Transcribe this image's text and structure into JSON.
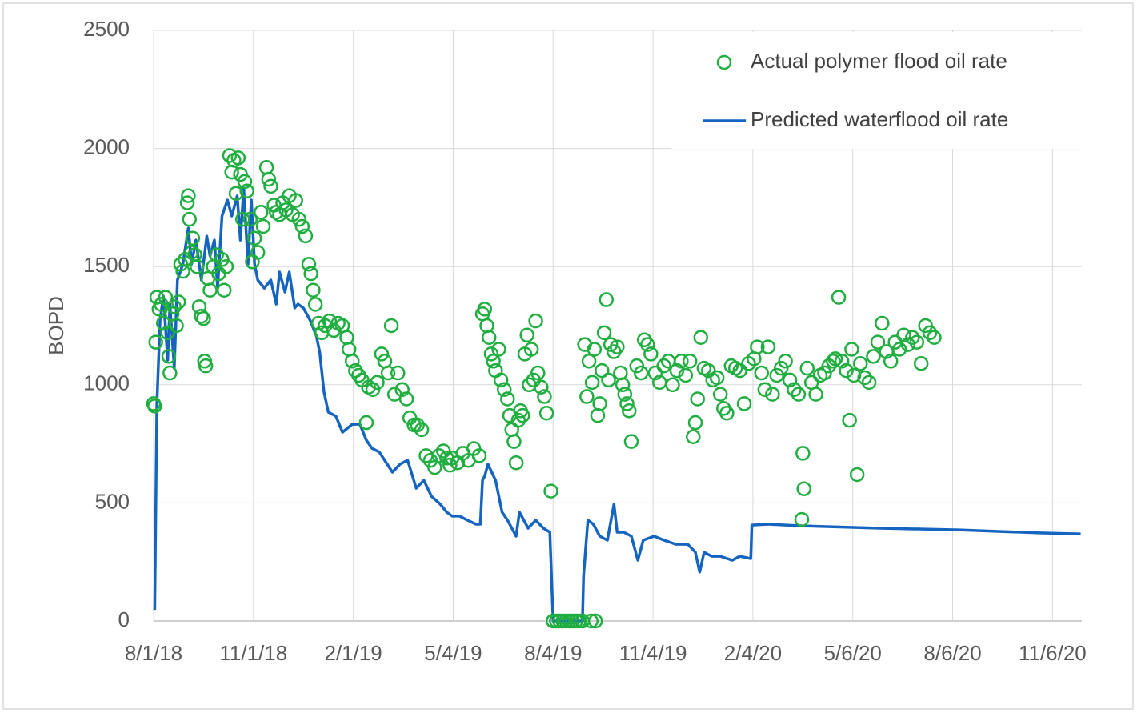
{
  "chart_data": {
    "type": "line",
    "ylabel": "BOPD",
    "xlim": [
      43313,
      44168
    ],
    "ylim": [
      0,
      2500
    ],
    "yticks": [
      0,
      500,
      1000,
      1500,
      2000,
      2500
    ],
    "xticks": [
      {
        "value": 43313,
        "label": "8/1/18"
      },
      {
        "value": 43405,
        "label": "11/1/18"
      },
      {
        "value": 43497,
        "label": "2/1/19"
      },
      {
        "value": 43589,
        "label": "5/4/19"
      },
      {
        "value": 43681,
        "label": "8/4/19"
      },
      {
        "value": 43773,
        "label": "11/4/19"
      },
      {
        "value": 43865,
        "label": "2/4/20"
      },
      {
        "value": 43957,
        "label": "5/6/20"
      },
      {
        "value": 44049,
        "label": "8/6/20"
      },
      {
        "value": 44141,
        "label": "11/6/20"
      }
    ],
    "grid": true,
    "legend": "upper right",
    "series": [
      {
        "name": "Actual polymer flood oil rate",
        "type": "scatter",
        "color": "#1fae3f",
        "x": [
          43313,
          43314,
          43315,
          43316,
          43318,
          43320,
          43322,
          43324,
          43326,
          43327,
          43328,
          43330,
          43332,
          43334,
          43336,
          43338,
          43340,
          43342,
          43344,
          43345,
          43346,
          43348,
          43349,
          43351,
          43353,
          43355,
          43357,
          43359,
          43360,
          43361,
          43363,
          43365,
          43368,
          43371,
          43373,
          43376,
          43378,
          43380,
          43383,
          43385,
          43387,
          43389,
          43391,
          43393,
          43395,
          43397,
          43399,
          43402,
          43404,
          43406,
          43409,
          43412,
          43414,
          43417,
          43419,
          43421,
          43424,
          43426,
          43429,
          43432,
          43435,
          43438,
          43441,
          43444,
          43447,
          43450,
          43453,
          43456,
          43458,
          43460,
          43462,
          43465,
          43468,
          43471,
          43475,
          43479,
          43483,
          43487,
          43491,
          43493,
          43496,
          43499,
          43502,
          43505,
          43509,
          43511,
          43515,
          43519,
          43523,
          43526,
          43529,
          43532,
          43535,
          43538,
          43542,
          43546,
          43549,
          43553,
          43556,
          43560,
          43564,
          43568,
          43572,
          43576,
          43580,
          43583,
          43586,
          43588,
          43593,
          43598,
          43603,
          43608,
          43613,
          43616,
          43618,
          43620,
          43622,
          43624,
          43626,
          43628,
          43631,
          43633,
          43636,
          43639,
          43641,
          43643,
          43645,
          43647,
          43649,
          43651,
          43653,
          43655,
          43657,
          43659,
          43661,
          43663,
          43665,
          43667,
          43670,
          43673,
          43675,
          43679,
          43681,
          43684,
          43687,
          43690,
          43693,
          43696,
          43699,
          43702,
          43705,
          43708,
          43716,
          43720,
          43710,
          43712,
          43714,
          43717,
          43719,
          43722,
          43724,
          43726,
          43728,
          43730,
          43732,
          43734,
          43737,
          43740,
          43743,
          43745,
          43747,
          43749,
          43751,
          43753,
          43758,
          43762,
          43765,
          43768,
          43771,
          43775,
          43779,
          43783,
          43787,
          43791,
          43795,
          43799,
          43803,
          43807,
          43810,
          43812,
          43814,
          43817,
          43820,
          43824,
          43828,
          43832,
          43835,
          43838,
          43841,
          43845,
          43849,
          43853,
          43857,
          43861,
          43866,
          43869,
          43873,
          43876,
          43879,
          43883,
          43887,
          43891,
          43895,
          43899,
          43903,
          43907,
          43910,
          43911,
          43912,
          43915,
          43919,
          43923,
          43927,
          43931,
          43935,
          43939,
          43941,
          43944,
          43947,
          43951,
          43954,
          43956,
          43958,
          43961,
          43964,
          43968,
          43972,
          43976,
          43980,
          43984,
          43988,
          43992,
          43996,
          44000,
          44004,
          44008,
          44012,
          44016,
          44020,
          44024,
          44028,
          44032
        ],
        "values": [
          920,
          910,
          1180,
          1370,
          1320,
          1340,
          1260,
          1370,
          1220,
          1120,
          1050,
          1300,
          1330,
          1250,
          1350,
          1510,
          1480,
          1530,
          1770,
          1800,
          1700,
          1560,
          1620,
          1550,
          1500,
          1330,
          1290,
          1280,
          1100,
          1080,
          1450,
          1400,
          1500,
          1550,
          1470,
          1530,
          1400,
          1500,
          1970,
          1900,
          1950,
          1810,
          1960,
          1890,
          1700,
          1860,
          1820,
          1700,
          1520,
          1620,
          1560,
          1730,
          1670,
          1920,
          1870,
          1840,
          1760,
          1730,
          1720,
          1770,
          1740,
          1800,
          1720,
          1780,
          1700,
          1670,
          1630,
          1510,
          1470,
          1400,
          1340,
          1260,
          1220,
          1250,
          1270,
          1230,
          1260,
          1250,
          1200,
          1150,
          1100,
          1060,
          1040,
          1020,
          840,
          990,
          980,
          1010,
          1130,
          1100,
          1050,
          1250,
          960,
          1050,
          980,
          940,
          860,
          830,
          830,
          810,
          700,
          680,
          650,
          700,
          720,
          690,
          660,
          690,
          670,
          710,
          680,
          730,
          700,
          1300,
          1320,
          1250,
          1200,
          1130,
          1100,
          1060,
          1150,
          1020,
          980,
          940,
          870,
          810,
          760,
          670,
          850,
          890,
          870,
          1130,
          1210,
          1000,
          1150,
          1020,
          1270,
          1050,
          990,
          950,
          880,
          550,
          0,
          0,
          0,
          0,
          0,
          0,
          0,
          0,
          0,
          0,
          0,
          0,
          1170,
          950,
          1100,
          1010,
          1150,
          870,
          920,
          1060,
          1220,
          1360,
          1020,
          1170,
          1140,
          1160,
          1050,
          1000,
          960,
          920,
          890,
          760,
          1080,
          1050,
          1190,
          1170,
          1130,
          1050,
          1010,
          1080,
          1100,
          1000,
          1060,
          1100,
          1040,
          1100,
          780,
          840,
          940,
          1200,
          1070,
          1060,
          1020,
          1030,
          960,
          900,
          880,
          1080,
          1070,
          1060,
          920,
          1090,
          1110,
          1160,
          1050,
          980,
          1160,
          960,
          1040,
          1070,
          1100,
          1020,
          980,
          960,
          430,
          710,
          560,
          1070,
          1010,
          960,
          1040,
          1050,
          1080,
          1100,
          1110,
          1370,
          1100,
          1060,
          850,
          1150,
          1040,
          620,
          1090,
          1030,
          1010,
          1120,
          1180,
          1260,
          1140,
          1100,
          1180,
          1150,
          1210,
          1170,
          1200,
          1180,
          1090,
          1250,
          1220,
          1200
        ]
      },
      {
        "name": "Predicted waterflood oil rate",
        "type": "line",
        "color": "#1565c0",
        "x": [
          43314,
          43316,
          43319,
          43322,
          43326,
          43328,
          43332,
          43335,
          43340,
          43345,
          43348,
          43352,
          43357,
          43362,
          43365,
          43369,
          43372,
          43376,
          43381,
          43385,
          43390,
          43393,
          43396,
          43400,
          43403,
          43406,
          43409,
          43415,
          43421,
          43426,
          43429,
          43434,
          43438,
          43443,
          43446,
          43451,
          43457,
          43463,
          43466,
          43470,
          43474,
          43481,
          43487,
          43496,
          43503,
          43509,
          43514,
          43521,
          43533,
          43540,
          43547,
          43555,
          43562,
          43569,
          43577,
          43583,
          43588,
          43595,
          43602,
          43610,
          43614,
          43616,
          43618,
          43621,
          43628,
          43634,
          43639,
          43647,
          43650,
          43658,
          43665,
          43672,
          43678,
          43681,
          43687,
          43702,
          43708,
          43709,
          43713,
          43718,
          43724,
          43731,
          43737,
          43740,
          43746,
          43753,
          43759,
          43764,
          43774,
          43783,
          43794,
          43805,
          43812,
          43816,
          43820,
          43827,
          43835,
          43846,
          43853,
          43863,
          43864,
          43879,
          43908,
          43982,
          44055,
          44129,
          44167
        ],
        "values": [
          47,
          918,
          1274,
          1375,
          1104,
          1341,
          1070,
          1443,
          1511,
          1663,
          1511,
          1612,
          1443,
          1629,
          1545,
          1612,
          1409,
          1714,
          1782,
          1714,
          1799,
          1612,
          1833,
          1511,
          1782,
          1511,
          1443,
          1409,
          1443,
          1341,
          1477,
          1392,
          1477,
          1325,
          1341,
          1325,
          1274,
          1206,
          1138,
          969,
          884,
          867,
          799,
          833,
          833,
          766,
          732,
          715,
          630,
          664,
          681,
          562,
          596,
          528,
          495,
          461,
          444,
          444,
          427,
          410,
          410,
          596,
          613,
          664,
          596,
          461,
          427,
          359,
          461,
          393,
          427,
          393,
          376,
          0,
          0,
          0,
          0,
          190,
          427,
          410,
          359,
          342,
          495,
          376,
          376,
          359,
          257,
          342,
          359,
          342,
          325,
          325,
          291,
          207,
          291,
          274,
          274,
          257,
          274,
          264,
          406,
          410,
          403,
          393,
          386,
          373,
          369
        ]
      }
    ]
  }
}
